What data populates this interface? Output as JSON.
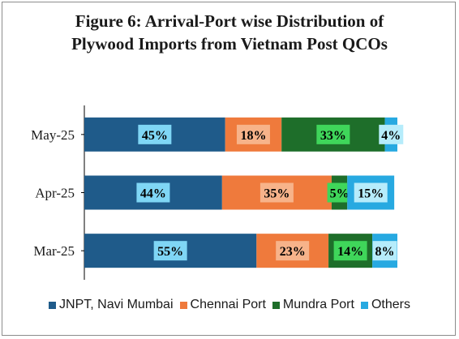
{
  "chart_data": {
    "type": "bar",
    "orientation": "horizontal",
    "stacked": true,
    "title_lines": [
      "Figure 6: Arrival-Port wise Distribution of",
      "Plywood Imports from Vietnam Post QCOs"
    ],
    "categories": [
      "May-25",
      "Apr-25",
      "Mar-25"
    ],
    "series": [
      {
        "name": "JNPT, Navi Mumbai",
        "color": "#1f5b8a",
        "label_bg": "#7fd6f5",
        "values": [
          45,
          44,
          55
        ]
      },
      {
        "name": "Chennai Port",
        "color": "#ef7a3c",
        "label_bg": "#f7b38a",
        "values": [
          18,
          35,
          23
        ]
      },
      {
        "name": "Mundra Port",
        "color": "#1e6e2a",
        "label_bg": "#3fd65a",
        "values": [
          33,
          5,
          14
        ]
      },
      {
        "name": "Others",
        "color": "#27a9e1",
        "label_bg": "#b6ecfb",
        "values": [
          4,
          15,
          8
        ]
      }
    ],
    "data_labels": [
      [
        "45%",
        "18%",
        "33%",
        "4%"
      ],
      [
        "44%",
        "35%",
        "5%",
        "15%"
      ],
      [
        "55%",
        "23%",
        "14%",
        "8%"
      ]
    ],
    "xlim": [
      0,
      100
    ],
    "grid": false,
    "legend_position": "bottom"
  }
}
